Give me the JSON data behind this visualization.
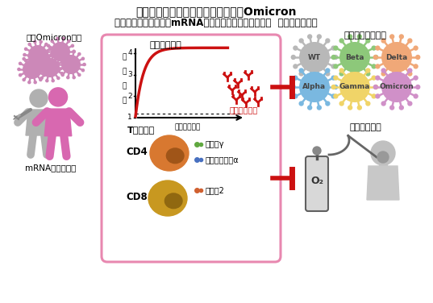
{
  "title_line1": "港大醫學院發現新型冠狀病毒變異株Omicron",
  "title_line2": "能喚起信使核糖核酸（mRNA）新冠疫苗誘導的免疫反應  並提供廣泛保護",
  "left_label1": "新冠Omicron病毒",
  "left_label2": "mRNA疫苗接種者",
  "chart_title": "廣譜中和抗體",
  "chart_xlabel": "出現症狀日數",
  "chart_ylabel": "中和濃度",
  "chart_annotation": "廣譜中和抗體",
  "tcell_title": "T細胞反應",
  "tcell_cd4": "CD4",
  "tcell_cd8": "CD8",
  "tcell_item1": "干擾素γ",
  "tcell_item2": "腫瘤壞死因子α",
  "tcell_item3": "白介素2",
  "right_top_title": "抑制所有變種病毒",
  "right_top_viruses": [
    "WT",
    "Beta",
    "Delta",
    "Alpha",
    "Gamma",
    "Omicron"
  ],
  "right_top_colors": [
    "#b8b8b8",
    "#8dc87a",
    "#f0a878",
    "#7ab8e0",
    "#f0d468",
    "#d090c8"
  ],
  "right_bottom_title": "減少嚴重病症",
  "bg_color": "#ffffff",
  "box_edge_color": "#e888b0",
  "red_color": "#cc1111",
  "gray_person": "#aaaaaa",
  "pink_person": "#d868b0",
  "virus_pink": "#cc88b8"
}
